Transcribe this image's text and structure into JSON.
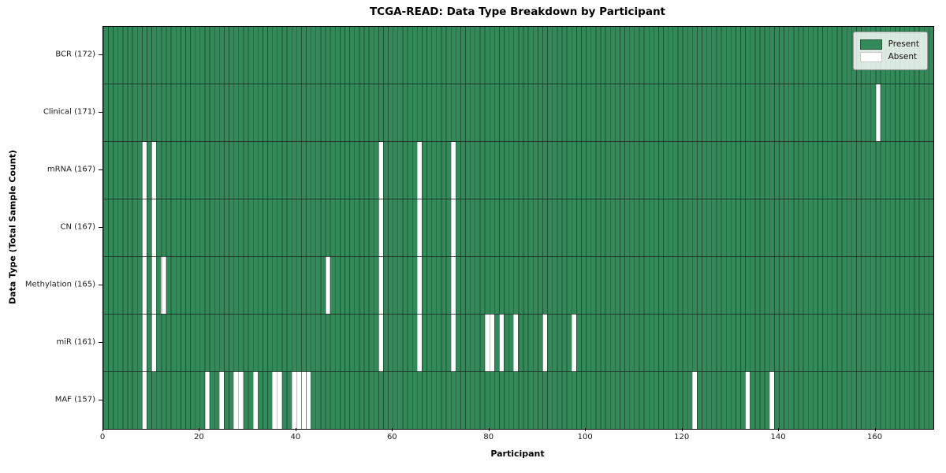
{
  "chart_data": {
    "type": "heatmap",
    "title": "TCGA-READ: Data Type Breakdown by Participant",
    "xlabel": "Participant",
    "ylabel": "Data Type (Total Sample Count)",
    "n_participants": 172,
    "x_axis": {
      "min": 0,
      "max": 172,
      "ticks": [
        0,
        20,
        40,
        60,
        80,
        100,
        120,
        140,
        160
      ]
    },
    "cell_semantics": {
      "green": "Present",
      "white": "Absent"
    },
    "rows": [
      {
        "label": "BCR (172)",
        "data_type": "BCR",
        "total": 172,
        "absent_participants": []
      },
      {
        "label": "Clinical (171)",
        "data_type": "Clinical",
        "total": 171,
        "absent_participants": [
          160
        ]
      },
      {
        "label": "mRNA (167)",
        "data_type": "mRNA",
        "total": 167,
        "absent_participants": [
          8,
          10,
          57,
          65,
          72
        ]
      },
      {
        "label": "CN (167)",
        "data_type": "CN",
        "total": 167,
        "absent_participants": [
          8,
          10,
          57,
          65,
          72
        ]
      },
      {
        "label": "Methylation (165)",
        "data_type": "Methylation",
        "total": 165,
        "absent_participants": [
          8,
          10,
          12,
          46,
          57,
          65,
          72
        ]
      },
      {
        "label": "miR (161)",
        "data_type": "miR",
        "total": 161,
        "absent_participants": [
          8,
          10,
          57,
          65,
          72,
          79,
          80,
          82,
          85,
          91,
          97
        ]
      },
      {
        "label": "MAF (157)",
        "data_type": "MAF",
        "total": 157,
        "absent_participants": [
          8,
          21,
          24,
          27,
          28,
          31,
          35,
          36,
          39,
          40,
          41,
          42,
          122,
          133,
          138
        ]
      }
    ],
    "legend": {
      "position": "upper right",
      "entries": [
        {
          "label": "Present",
          "color": "#33895a"
        },
        {
          "label": "Absent",
          "color": "#ffffff"
        }
      ]
    },
    "colors": {
      "present": "#33895a",
      "absent": "#ffffff",
      "mesh_line": "rgba(15,35,22,0.55)",
      "row_line": "rgba(28,40,32,0.8)",
      "spine": "#000000"
    }
  }
}
